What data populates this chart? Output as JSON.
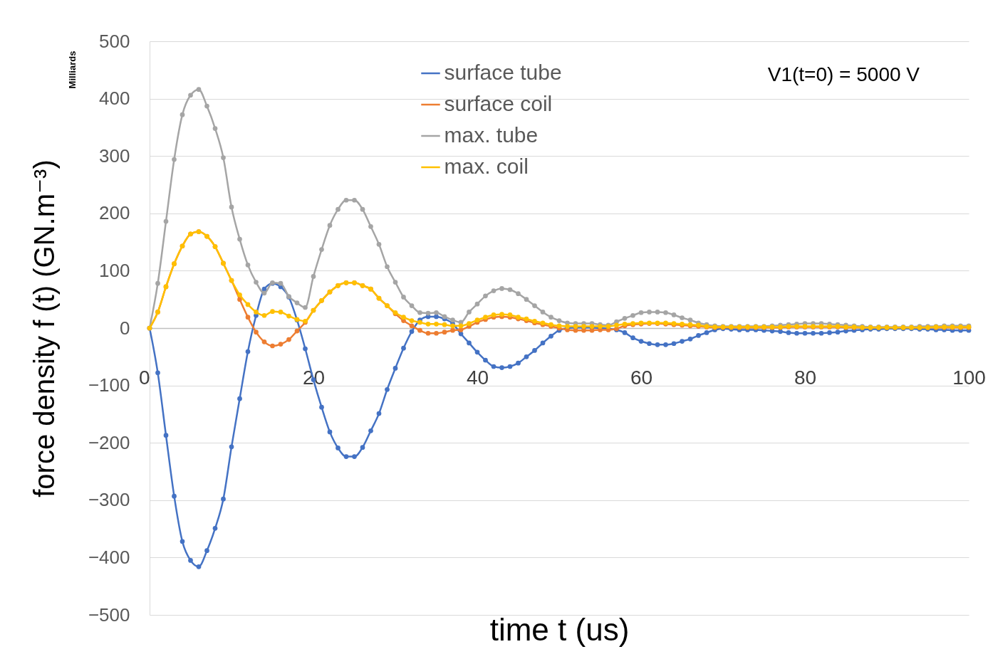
{
  "chart_data": {
    "type": "line",
    "xlabel": "time t (us)",
    "ylabel": "force density f (t) (GN.m⁻³)",
    "annotations": [
      "Milliards",
      "V1(t=0) = 5000 V"
    ],
    "x": [
      0,
      1,
      2,
      3,
      4,
      5,
      6,
      7,
      8,
      9,
      10,
      11,
      12,
      13,
      14,
      15,
      16,
      17,
      18,
      19,
      20,
      21,
      22,
      23,
      24,
      25,
      26,
      27,
      28,
      29,
      30,
      31,
      32,
      33,
      34,
      35,
      36,
      37,
      38,
      39,
      40,
      41,
      42,
      43,
      44,
      45,
      46,
      47,
      48,
      49,
      50,
      51,
      52,
      53,
      54,
      55,
      56,
      57,
      58,
      59,
      60,
      61,
      62,
      63,
      64,
      65,
      66,
      67,
      68,
      69,
      70,
      71,
      72,
      73,
      74,
      75,
      76,
      77,
      78,
      79,
      80,
      81,
      82,
      83,
      84,
      85,
      86,
      87,
      88,
      89,
      90,
      91,
      92,
      93,
      94,
      95,
      96,
      97,
      98,
      99,
      100
    ],
    "xlim": [
      0,
      100
    ],
    "xticks": [
      0,
      20,
      40,
      60,
      80,
      100
    ],
    "ylim": [
      -500,
      500
    ],
    "yticks": [
      -500,
      -400,
      -300,
      -200,
      -100,
      0,
      100,
      200,
      300,
      400,
      500
    ],
    "grid": "y",
    "legend": "top",
    "marker": "circle",
    "line_style": "solid",
    "series": [
      {
        "name": "surface tube",
        "color": "#4472c4",
        "values": [
          0,
          -78,
          -187,
          -293,
          -372,
          -405,
          -416,
          -388,
          -349,
          -298,
          -207,
          -123,
          -41,
          22,
          68,
          78,
          72,
          54,
          14,
          -36,
          -90,
          -138,
          -181,
          -209,
          -224,
          -224,
          -208,
          -179,
          -149,
          -107,
          -70,
          -35,
          -6,
          14,
          20,
          20,
          16,
          8,
          -10,
          -26,
          -42,
          -56,
          -67,
          -69,
          -67,
          -61,
          -50,
          -39,
          -26,
          -14,
          -4,
          0,
          1,
          1,
          1,
          0,
          -1,
          -3,
          -8,
          -17,
          -23,
          -27,
          -29,
          -29,
          -27,
          -23,
          -19,
          -13,
          -8,
          -3,
          -1,
          -2,
          -3,
          -3,
          -3,
          -4,
          -5,
          -6,
          -8,
          -9,
          -9,
          -9,
          -9,
          -8,
          -7,
          -5,
          -4,
          -3,
          -2,
          -2,
          -1,
          -1,
          -1,
          -1,
          -2,
          -2,
          -3,
          -3,
          -4,
          -4,
          -4
        ]
      },
      {
        "name": "surface coil",
        "color": "#ed7d31",
        "values": [
          0,
          28,
          72,
          112,
          143,
          164,
          168,
          160,
          142,
          113,
          83,
          50,
          19,
          -7,
          -24,
          -31,
          -28,
          -20,
          -5,
          10,
          31,
          48,
          63,
          74,
          79,
          79,
          74,
          68,
          52,
          39,
          25,
          13,
          4,
          -4,
          -9,
          -9,
          -7,
          -4,
          -3,
          3,
          10,
          15,
          19,
          20,
          19,
          16,
          13,
          9,
          6,
          3,
          0,
          -3,
          -4,
          -4,
          -4,
          -3,
          -3,
          -1,
          4,
          6,
          7,
          8,
          8,
          7,
          6,
          5,
          4,
          3,
          2,
          1,
          1,
          1,
          1,
          1,
          1,
          1,
          1,
          1,
          2,
          2,
          2,
          2,
          2,
          2,
          2,
          1,
          1,
          1,
          1,
          1,
          1,
          1,
          1,
          1,
          1,
          1,
          1,
          1,
          1,
          1,
          1
        ]
      },
      {
        "name": "max. tube",
        "color": "#a5a5a5",
        "values": [
          0,
          78,
          186,
          294,
          372,
          406,
          416,
          387,
          348,
          297,
          211,
          155,
          110,
          80,
          61,
          79,
          78,
          55,
          44,
          36,
          90,
          137,
          179,
          207,
          223,
          223,
          207,
          177,
          146,
          107,
          80,
          54,
          39,
          27,
          26,
          27,
          20,
          14,
          10,
          28,
          42,
          56,
          65,
          69,
          67,
          60,
          50,
          39,
          28,
          19,
          13,
          9,
          8,
          8,
          8,
          6,
          5,
          11,
          17,
          22,
          27,
          28,
          28,
          27,
          23,
          18,
          14,
          9,
          6,
          4,
          3,
          3,
          3,
          3,
          3,
          3,
          4,
          5,
          6,
          7,
          8,
          8,
          8,
          7,
          6,
          5,
          4,
          3,
          2,
          2,
          2,
          2,
          2,
          2,
          3,
          3,
          3,
          4,
          4,
          4,
          4
        ]
      },
      {
        "name": "max. coil",
        "color": "#ffc000",
        "values": [
          0,
          28,
          72,
          112,
          143,
          164,
          168,
          160,
          142,
          113,
          83,
          58,
          41,
          28,
          22,
          29,
          28,
          21,
          15,
          12,
          31,
          48,
          63,
          74,
          79,
          79,
          74,
          68,
          52,
          39,
          27,
          19,
          13,
          10,
          7,
          7,
          6,
          4,
          4,
          8,
          14,
          19,
          23,
          24,
          23,
          19,
          16,
          12,
          9,
          6,
          4,
          3,
          3,
          3,
          3,
          3,
          3,
          5,
          7,
          8,
          9,
          9,
          9,
          9,
          8,
          7,
          6,
          5,
          3,
          2,
          2,
          2,
          2,
          2,
          2,
          2,
          2,
          2,
          3,
          3,
          3,
          3,
          3,
          3,
          3,
          2,
          2,
          1,
          1,
          1,
          1,
          1,
          1,
          1,
          1,
          1,
          2,
          2,
          2,
          2,
          2
        ]
      }
    ]
  }
}
